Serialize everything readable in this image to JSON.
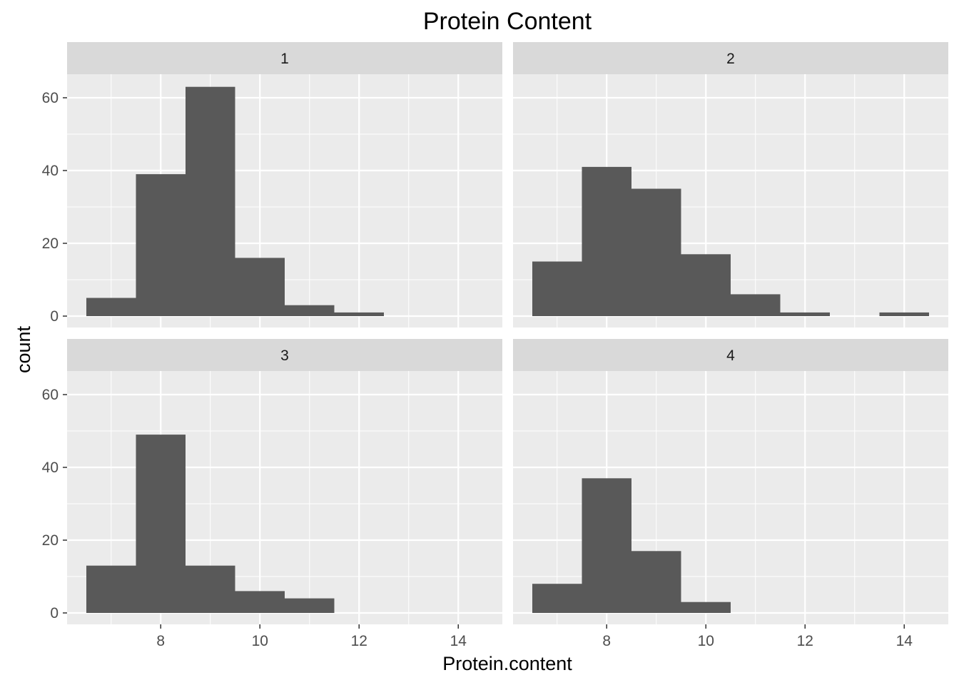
{
  "chart_data": {
    "type": "bar",
    "subtype": "faceted-histogram",
    "title": "Protein Content",
    "xlabel": "Protein.content",
    "ylabel": "count",
    "xlim": [
      6.5,
      14.5
    ],
    "ylim": [
      0,
      66
    ],
    "x_ticks": [
      8,
      10,
      12,
      14
    ],
    "y_ticks": [
      0,
      20,
      40,
      60
    ],
    "bin_width": 1,
    "grid": true,
    "bar_color": "#595959",
    "panel_background": "#ebebeb",
    "strip_background": "#d9d9d9",
    "panels": [
      {
        "facet": "1",
        "bins": [
          {
            "x0": 6.5,
            "x1": 7.5,
            "count": 5
          },
          {
            "x0": 7.5,
            "x1": 8.5,
            "count": 39
          },
          {
            "x0": 8.5,
            "x1": 9.5,
            "count": 63
          },
          {
            "x0": 9.5,
            "x1": 10.5,
            "count": 16
          },
          {
            "x0": 10.5,
            "x1": 11.5,
            "count": 3
          },
          {
            "x0": 11.5,
            "x1": 12.5,
            "count": 1
          }
        ]
      },
      {
        "facet": "2",
        "bins": [
          {
            "x0": 6.5,
            "x1": 7.5,
            "count": 15
          },
          {
            "x0": 7.5,
            "x1": 8.5,
            "count": 41
          },
          {
            "x0": 8.5,
            "x1": 9.5,
            "count": 35
          },
          {
            "x0": 9.5,
            "x1": 10.5,
            "count": 17
          },
          {
            "x0": 10.5,
            "x1": 11.5,
            "count": 6
          },
          {
            "x0": 11.5,
            "x1": 12.5,
            "count": 1
          },
          {
            "x0": 13.5,
            "x1": 14.5,
            "count": 1
          }
        ]
      },
      {
        "facet": "3",
        "bins": [
          {
            "x0": 6.5,
            "x1": 7.5,
            "count": 13
          },
          {
            "x0": 7.5,
            "x1": 8.5,
            "count": 49
          },
          {
            "x0": 8.5,
            "x1": 9.5,
            "count": 13
          },
          {
            "x0": 9.5,
            "x1": 10.5,
            "count": 6
          },
          {
            "x0": 10.5,
            "x1": 11.5,
            "count": 4
          }
        ]
      },
      {
        "facet": "4",
        "bins": [
          {
            "x0": 6.5,
            "x1": 7.5,
            "count": 8
          },
          {
            "x0": 7.5,
            "x1": 8.5,
            "count": 37
          },
          {
            "x0": 8.5,
            "x1": 9.5,
            "count": 17
          },
          {
            "x0": 9.5,
            "x1": 10.5,
            "count": 3
          }
        ]
      }
    ]
  }
}
